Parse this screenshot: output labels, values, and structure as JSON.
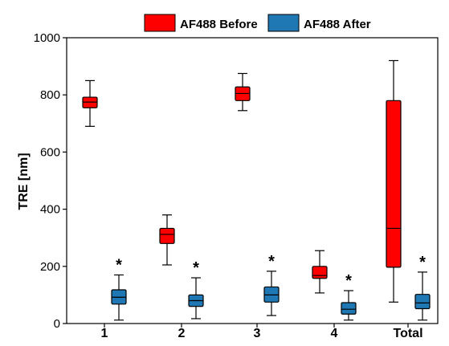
{
  "chart_data": {
    "type": "box",
    "title": "",
    "xlabel": "",
    "ylabel": "TRE [nm]",
    "ylim": [
      0,
      1000
    ],
    "yticks": [
      0,
      200,
      400,
      600,
      800,
      1000
    ],
    "grid": false,
    "legend_position": "top",
    "categories": [
      "1",
      "2",
      "3",
      "4",
      "Total"
    ],
    "series": [
      {
        "name": "AF488 Before",
        "color": "#ff0000",
        "boxes": [
          {
            "min": 690,
            "q1": 755,
            "median": 775,
            "q3": 792,
            "max": 850
          },
          {
            "min": 205,
            "q1": 280,
            "median": 312,
            "q3": 333,
            "max": 380
          },
          {
            "min": 745,
            "q1": 780,
            "median": 805,
            "q3": 828,
            "max": 875
          },
          {
            "min": 107,
            "q1": 158,
            "median": 168,
            "q3": 200,
            "max": 255
          },
          {
            "min": 75,
            "q1": 197,
            "median": 333,
            "q3": 780,
            "max": 920
          }
        ]
      },
      {
        "name": "AF488 After",
        "color": "#1f77b4",
        "boxes": [
          {
            "min": 12,
            "q1": 68,
            "median": 92,
            "q3": 118,
            "max": 170
          },
          {
            "min": 17,
            "q1": 60,
            "median": 80,
            "q3": 100,
            "max": 160
          },
          {
            "min": 28,
            "q1": 75,
            "median": 100,
            "q3": 128,
            "max": 183
          },
          {
            "min": 12,
            "q1": 33,
            "median": 50,
            "q3": 73,
            "max": 115
          },
          {
            "min": 12,
            "q1": 52,
            "median": 72,
            "q3": 102,
            "max": 180
          }
        ]
      }
    ],
    "annotations": [
      "*",
      "*",
      "*",
      "*",
      "*"
    ]
  }
}
